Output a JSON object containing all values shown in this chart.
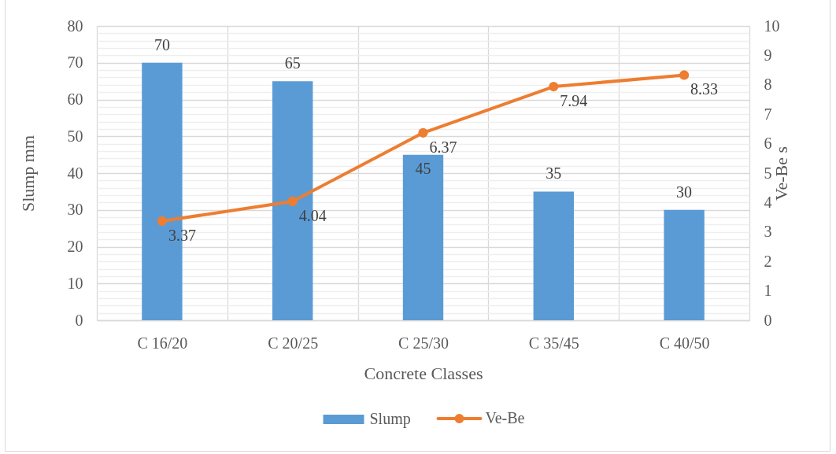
{
  "chart_data": {
    "type": "bar",
    "categories": [
      "C 16/20",
      "C 20/25",
      "C 25/30",
      "C 35/45",
      "C 40/50"
    ],
    "series": [
      {
        "name": "Slump",
        "color": "#5b9bd5",
        "values": [
          70,
          65,
          45,
          35,
          30
        ]
      },
      {
        "name": "Ve-Be",
        "type": "line",
        "axis": "y2",
        "color": "#ed7d31",
        "values": [
          3.37,
          4.04,
          6.37,
          7.94,
          8.33
        ]
      }
    ],
    "xlabel": "Concrete Classes",
    "ylabel": "Slump mm",
    "y2label": "Ve-Be s",
    "ylim": [
      0,
      80
    ],
    "yticks": [
      0,
      {
        "value": 2,
        "label": null
      },
      {
        "value": 4,
        "label": null
      },
      {
        "value": 6,
        "label": null
      },
      {
        "value": 8,
        "label": null
      },
      10,
      {
        "value": 12,
        "label": null
      },
      {
        "value": 14,
        "label": null
      },
      {
        "value": 16,
        "label": null
      },
      {
        "value": 18,
        "label": null
      },
      20,
      {
        "value": 22,
        "label": null
      },
      {
        "value": 24,
        "label": null
      },
      {
        "value": 26,
        "label": null
      },
      {
        "value": 28,
        "label": null
      },
      30,
      {
        "value": 32,
        "label": null
      },
      {
        "value": 34,
        "label": null
      },
      {
        "value": 36,
        "label": null
      },
      {
        "value": 38,
        "label": null
      },
      40,
      {
        "value": 42,
        "label": null
      },
      {
        "value": 44,
        "label": null
      },
      {
        "value": 46,
        "label": null
      },
      {
        "value": 48,
        "label": null
      },
      50,
      {
        "value": 52,
        "label": null
      },
      {
        "value": 54,
        "label": null
      },
      {
        "value": 56,
        "label": null
      },
      {
        "value": 58,
        "label": null
      },
      60,
      {
        "value": 62,
        "label": null
      },
      {
        "value": 64,
        "label": null
      },
      {
        "value": 66,
        "label": null
      },
      {
        "value": 68,
        "label": null
      },
      70,
      {
        "value": 72,
        "label": null
      },
      {
        "value": 74,
        "label": null
      },
      {
        "value": 76,
        "label": null
      },
      {
        "value": 78,
        "label": null
      },
      80
    ],
    "y2lim": [
      0,
      10
    ],
    "y2ticks": [
      0,
      1,
      2,
      3,
      4,
      5,
      6,
      7,
      8,
      9,
      10
    ],
    "grid": true,
    "legend": "bottom",
    "marker": "circle",
    "line_style": "solid",
    "data_labels": true
  }
}
